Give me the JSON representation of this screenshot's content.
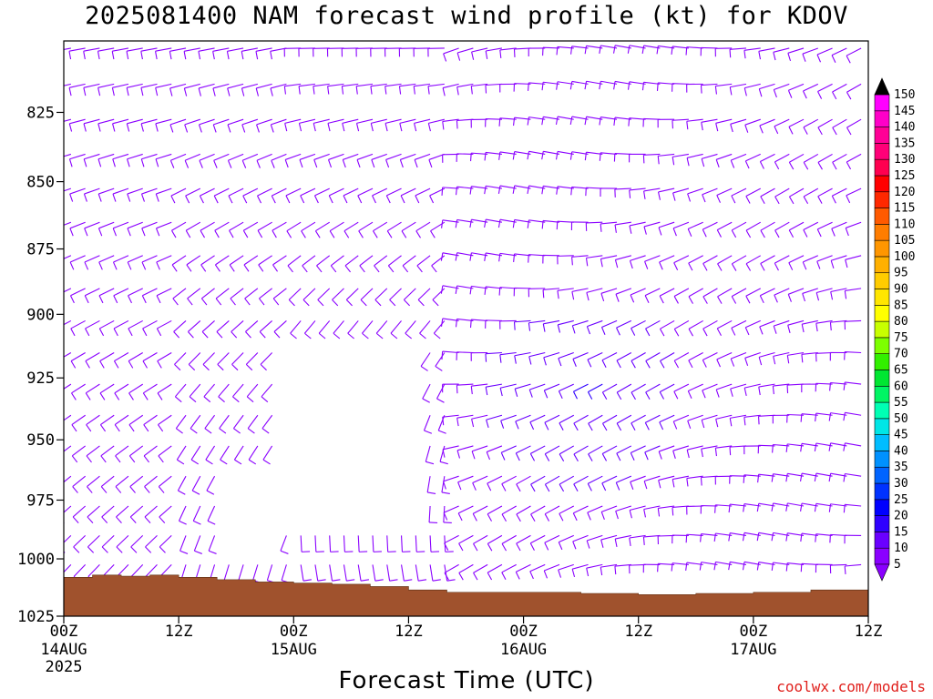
{
  "title": "2025081400 NAM forecast wind profile (kt) for KDOV",
  "credit": "coolwx.com/models",
  "chart_data": {
    "type": "wind-barb-time-height",
    "title": "2025081400 NAM forecast wind profile (kt) for KDOV",
    "xlabel": "Forecast Time (UTC)",
    "ylabel": "",
    "x_range_hours": [
      0,
      84
    ],
    "x_ticks": [
      {
        "hour": 0,
        "label": "00Z",
        "sub": [
          "14AUG",
          "2025"
        ]
      },
      {
        "hour": 12,
        "label": "12Z",
        "sub": []
      },
      {
        "hour": 24,
        "label": "00Z",
        "sub": [
          "15AUG"
        ]
      },
      {
        "hour": 36,
        "label": "12Z",
        "sub": []
      },
      {
        "hour": 48,
        "label": "00Z",
        "sub": [
          "16AUG"
        ]
      },
      {
        "hour": 60,
        "label": "12Z",
        "sub": []
      },
      {
        "hour": 72,
        "label": "00Z",
        "sub": [
          "17AUG"
        ]
      },
      {
        "hour": 84,
        "label": "12Z",
        "sub": []
      }
    ],
    "y_range_hpa": [
      1025,
      800
    ],
    "y_ticks": [
      "825",
      "850",
      "875",
      "900",
      "925",
      "950",
      "975",
      "1000",
      "1025"
    ],
    "y_scale": "log-pressure",
    "surface_color": "#a0522d",
    "surface_pressure": [
      {
        "hour": 0,
        "hpa": 1008
      },
      {
        "hour": 3,
        "hpa": 1007
      },
      {
        "hour": 6,
        "hpa": 1007.5
      },
      {
        "hour": 9,
        "hpa": 1007
      },
      {
        "hour": 12,
        "hpa": 1008
      },
      {
        "hour": 16,
        "hpa": 1009
      },
      {
        "hour": 20,
        "hpa": 1010
      },
      {
        "hour": 24,
        "hpa": 1010.5
      },
      {
        "hour": 28,
        "hpa": 1011
      },
      {
        "hour": 32,
        "hpa": 1012
      },
      {
        "hour": 36,
        "hpa": 1013.5
      },
      {
        "hour": 40,
        "hpa": 1014.5
      },
      {
        "hour": 48,
        "hpa": 1014.5
      },
      {
        "hour": 54,
        "hpa": 1015
      },
      {
        "hour": 60,
        "hpa": 1015.5
      },
      {
        "hour": 66,
        "hpa": 1015
      },
      {
        "hour": 72,
        "hpa": 1014.5
      },
      {
        "hour": 78,
        "hpa": 1013.5
      },
      {
        "hour": 84,
        "hpa": 1014
      }
    ],
    "colorbar": {
      "levels": [
        5,
        10,
        15,
        20,
        25,
        30,
        35,
        40,
        45,
        50,
        55,
        60,
        65,
        70,
        75,
        80,
        85,
        90,
        95,
        100,
        105,
        110,
        115,
        120,
        125,
        130,
        135,
        140,
        145,
        150
      ],
      "colors": [
        "#8a00ff",
        "#6a00ff",
        "#2f00ff",
        "#0000ff",
        "#0032ff",
        "#0064ff",
        "#0091ff",
        "#00bdff",
        "#00e6e6",
        "#00ffb4",
        "#00f564",
        "#00e632",
        "#32f000",
        "#7dff00",
        "#c8ff00",
        "#ffff00",
        "#ffe600",
        "#ffcc00",
        "#ffb000",
        "#ff9600",
        "#ff7d00",
        "#ff5a00",
        "#ff2800",
        "#ff0000",
        "#ff0050",
        "#ff0078",
        "#ff0096",
        "#ff00c8",
        "#ff00ff"
      ],
      "min_arrow_color": "#8a00ff",
      "max_arrow_color": "#000000"
    },
    "wind_field_summary": "Barbs colored by speed (mostly 5-10 kt purple, ~15-20 kt blue near 900-960 hPa around 16AUG 06Z). Low-level winds shift direction near 15AUG 00Z-12Z with a calm column below 900 hPa."
  }
}
